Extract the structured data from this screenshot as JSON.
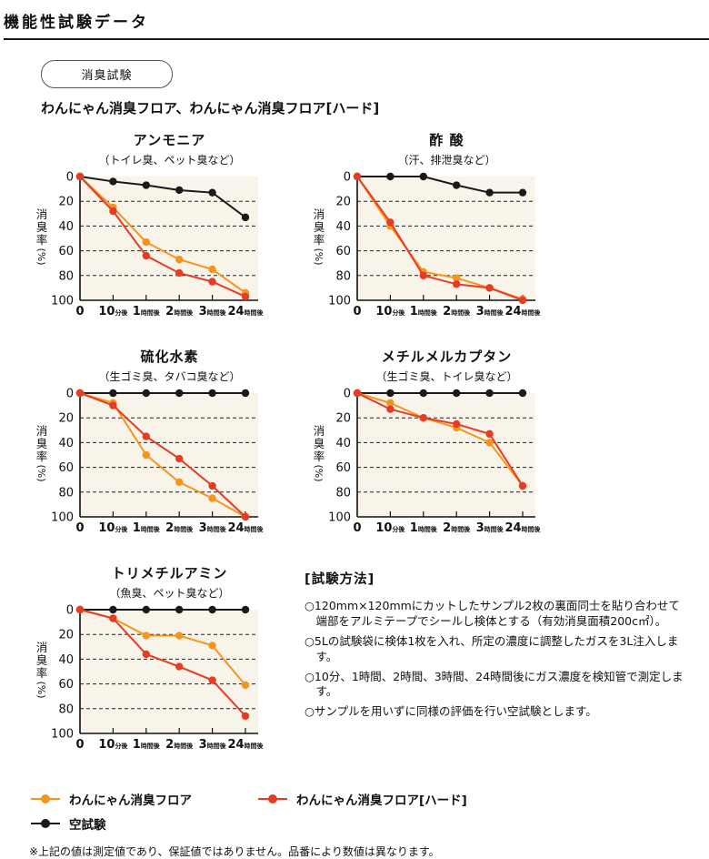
{
  "page": {
    "title": "機能性試験データ",
    "badge": "消臭試験",
    "subtitle": "わんにゃん消臭フロア、わんにゃん消臭フロア[ハード]"
  },
  "charts_common": {
    "type": "line",
    "ylabel": "消臭率(%)",
    "y_ticks": [
      0,
      20,
      40,
      60,
      80,
      100
    ],
    "ylim": [
      0,
      100
    ],
    "y_axis_inverted": true,
    "grid": "dashed horizontal at 20/40/60/80",
    "plot_bg": "#f8f4ea",
    "axis_color": "#111111",
    "x_categories": [
      {
        "num": "0",
        "suffix": ""
      },
      {
        "num": "10",
        "suffix": "分後"
      },
      {
        "num": "1",
        "suffix": "時間後"
      },
      {
        "num": "2",
        "suffix": "時間後"
      },
      {
        "num": "3",
        "suffix": "時間後"
      },
      {
        "num": "24",
        "suffix": "時間後"
      }
    ]
  },
  "chart_data": [
    {
      "type": "line",
      "title": "アンモニア",
      "subtitle": "（トイレ臭、ペット臭など）",
      "series": [
        {
          "name": "わんにゃん消臭フロア",
          "color": "#f7941e",
          "values": [
            0,
            25,
            53,
            67,
            75,
            94
          ]
        },
        {
          "name": "わんにゃん消臭フロア[ハード]",
          "color": "#e63c23",
          "values": [
            0,
            28,
            64,
            78,
            85,
            97
          ]
        },
        {
          "name": "空試験",
          "color": "#1a1a1a",
          "values": [
            0,
            4,
            7,
            11,
            13,
            33
          ]
        }
      ]
    },
    {
      "type": "line",
      "title": "酢 酸",
      "subtitle": "（汗、排泄臭など）",
      "series": [
        {
          "name": "わんにゃん消臭フロア",
          "color": "#f7941e",
          "values": [
            0,
            40,
            77,
            82,
            90,
            99
          ]
        },
        {
          "name": "わんにゃん消臭フロア[ハード]",
          "color": "#e63c23",
          "values": [
            0,
            37,
            80,
            87,
            90,
            100
          ]
        },
        {
          "name": "空試験",
          "color": "#1a1a1a",
          "values": [
            0,
            0,
            0,
            7,
            13,
            13
          ]
        }
      ]
    },
    {
      "type": "line",
      "title": "硫化水素",
      "subtitle": "（生ゴミ臭、タバコ臭など）",
      "series": [
        {
          "name": "わんにゃん消臭フロア",
          "color": "#f7941e",
          "values": [
            0,
            8,
            50,
            72,
            85,
            100
          ]
        },
        {
          "name": "わんにゃん消臭フロア[ハード]",
          "color": "#e63c23",
          "values": [
            0,
            10,
            35,
            53,
            75,
            100
          ]
        },
        {
          "name": "空試験",
          "color": "#1a1a1a",
          "values": [
            0,
            0,
            0,
            0,
            0,
            0
          ]
        }
      ]
    },
    {
      "type": "line",
      "title": "メチルメルカプタン",
      "subtitle": "（生ゴミ臭、トイレ臭など）",
      "series": [
        {
          "name": "わんにゃん消臭フロア",
          "color": "#f7941e",
          "values": [
            0,
            8,
            20,
            28,
            40,
            75
          ]
        },
        {
          "name": "わんにゃん消臭フロア[ハード]",
          "color": "#e63c23",
          "values": [
            0,
            13,
            20,
            25,
            33,
            75
          ]
        },
        {
          "name": "空試験",
          "color": "#1a1a1a",
          "values": [
            0,
            0,
            0,
            0,
            0,
            0
          ]
        }
      ]
    },
    {
      "type": "line",
      "title": "トリメチルアミン",
      "subtitle": "（魚臭、ペット臭など）",
      "series": [
        {
          "name": "わんにゃん消臭フロア",
          "color": "#f7941e",
          "values": [
            0,
            7,
            21,
            21,
            29,
            61
          ]
        },
        {
          "name": "わんにゃん消臭フロア[ハード]",
          "color": "#e63c23",
          "values": [
            0,
            7,
            36,
            46,
            57,
            86
          ]
        },
        {
          "name": "空試験",
          "color": "#1a1a1a",
          "values": [
            0,
            0,
            0,
            0,
            0,
            0
          ]
        }
      ]
    }
  ],
  "test_method": {
    "title": "[試験方法]",
    "items": [
      "○120mm×120mmにカットしたサンプル2枚の裏面同士を貼り合わせて端部をアルミテープでシールし検体とする（有効消臭面積200c㎡）。",
      "○5Lの試験袋に検体1枚を入れ、所定の濃度に調整したガスを3L注入します。",
      "○10分、1時間、2時間、3時間、24時間後にガス濃度を検知管で測定します。",
      "○サンプルを用いずに同様の評価を行い空試験とします。"
    ]
  },
  "legend": [
    {
      "label": "わんにゃん消臭フロア",
      "color": "#f7941e"
    },
    {
      "label": "わんにゃん消臭フロア[ハード]",
      "color": "#e63c23"
    },
    {
      "label": "空試験",
      "color": "#1a1a1a"
    }
  ],
  "footnote": "※上記の値は測定値であり、保証値ではありません。品番により数値は異なります。"
}
